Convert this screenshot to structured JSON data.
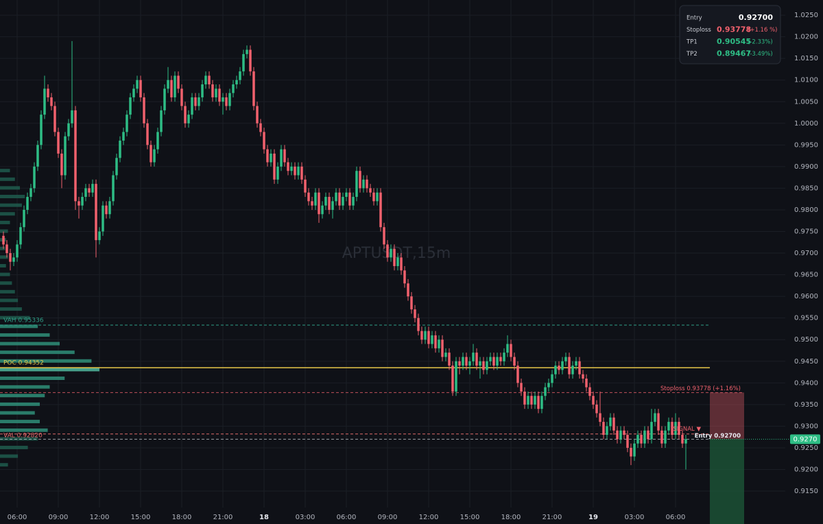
{
  "chart_data": {
    "type": "candlestick",
    "watermark": "APTUSDT,15m",
    "colors": {
      "up": "#2ebd85",
      "down": "#f0616d"
    },
    "grid": true,
    "xlim": [
      -1,
      228
    ],
    "xticks": [
      {
        "value": 4,
        "label": "06:00"
      },
      {
        "value": 16,
        "label": "09:00"
      },
      {
        "value": 28,
        "label": "12:00"
      },
      {
        "value": 40,
        "label": "15:00"
      },
      {
        "value": 52,
        "label": "18:00"
      },
      {
        "value": 64,
        "label": "21:00"
      },
      {
        "value": 76,
        "label": "18"
      },
      {
        "value": 88,
        "label": "03:00"
      },
      {
        "value": 100,
        "label": "06:00"
      },
      {
        "value": 112,
        "label": "09:00"
      },
      {
        "value": 124,
        "label": "12:00"
      },
      {
        "value": 136,
        "label": "15:00"
      },
      {
        "value": 148,
        "label": "18:00"
      },
      {
        "value": 160,
        "label": "21:00"
      },
      {
        "value": 172,
        "label": "19"
      },
      {
        "value": 184,
        "label": "03:00"
      },
      {
        "value": 196,
        "label": "06:00"
      }
    ],
    "ylim": [
      0.9112,
      1.0285
    ],
    "yticks": [
      {
        "value": 1.025,
        "label": "1.0250"
      },
      {
        "value": 1.02,
        "label": "1.0200"
      },
      {
        "value": 1.015,
        "label": "1.0150"
      },
      {
        "value": 1.01,
        "label": "1.0100"
      },
      {
        "value": 1.005,
        "label": "1.0050"
      },
      {
        "value": 1.0,
        "label": "1.0000"
      },
      {
        "value": 0.995,
        "label": "0.9950"
      },
      {
        "value": 0.99,
        "label": "0.9900"
      },
      {
        "value": 0.985,
        "label": "0.9850"
      },
      {
        "value": 0.98,
        "label": "0.9800"
      },
      {
        "value": 0.975,
        "label": "0.9750"
      },
      {
        "value": 0.97,
        "label": "0.9700"
      },
      {
        "value": 0.965,
        "label": "0.9650"
      },
      {
        "value": 0.96,
        "label": "0.9600"
      },
      {
        "value": 0.955,
        "label": "0.9550"
      },
      {
        "value": 0.95,
        "label": "0.9500"
      },
      {
        "value": 0.945,
        "label": "0.9450"
      },
      {
        "value": 0.94,
        "label": "0.9400"
      },
      {
        "value": 0.935,
        "label": "0.9350"
      },
      {
        "value": 0.93,
        "label": "0.9300"
      },
      {
        "value": 0.925,
        "label": "0.9250"
      },
      {
        "value": 0.92,
        "label": "0.9200"
      },
      {
        "value": 0.915,
        "label": "0.9150"
      }
    ],
    "open": [
      0.974,
      0.972,
      0.97,
      0.968,
      0.969,
      0.972,
      0.976,
      0.98,
      0.983,
      0.985,
      0.99,
      0.995,
      1.002,
      1.008,
      1.006,
      1.004,
      0.998,
      0.993,
      0.988,
      0.997,
      1.0,
      1.003,
      0.982,
      0.981,
      0.983,
      0.985,
      0.984,
      0.986,
      0.973,
      0.975,
      0.981,
      0.979,
      0.982,
      0.988,
      0.992,
      0.996,
      0.998,
      1.002,
      1.006,
      1.008,
      1.01,
      1.006,
      1.0,
      0.995,
      0.991,
      0.994,
      0.998,
      1.003,
      1.008,
      1.01,
      1.006,
      1.011,
      1.008,
      1.004,
      1.0,
      1.002,
      1.006,
      1.004,
      1.006,
      1.009,
      1.011,
      1.009,
      1.006,
      1.008,
      1.005,
      1.006,
      1.004,
      1.007,
      1.009,
      1.01,
      1.012,
      1.016,
      1.017,
      1.012,
      1.004,
      1.0,
      0.998,
      0.994,
      0.991,
      0.993,
      0.987,
      0.99,
      0.994,
      0.991,
      0.989,
      0.99,
      0.988,
      0.99,
      0.987,
      0.984,
      0.982,
      0.981,
      0.984,
      0.979,
      0.981,
      0.983,
      0.98,
      0.982,
      0.984,
      0.981,
      0.983,
      0.984,
      0.981,
      0.983,
      0.989,
      0.985,
      0.987,
      0.985,
      0.984,
      0.982,
      0.984,
      0.976,
      0.972,
      0.969,
      0.971,
      0.967,
      0.969,
      0.966,
      0.963,
      0.96,
      0.957,
      0.955,
      0.952,
      0.95,
      0.952,
      0.949,
      0.951,
      0.948,
      0.95,
      0.946,
      0.947,
      0.944,
      0.938,
      0.945,
      0.944,
      0.946,
      0.944,
      0.945,
      0.947,
      0.944,
      0.945,
      0.943,
      0.945,
      0.946,
      0.944,
      0.946,
      0.945,
      0.947,
      0.949,
      0.946,
      0.944,
      0.94,
      0.938,
      0.935,
      0.937,
      0.935,
      0.937,
      0.934,
      0.937,
      0.939,
      0.94,
      0.942,
      0.944,
      0.943,
      0.945,
      0.946,
      0.942,
      0.944,
      0.945,
      0.942,
      0.941,
      0.939,
      0.937,
      0.935,
      0.933,
      0.931,
      0.928,
      0.93,
      0.932,
      0.929,
      0.927,
      0.929,
      0.928,
      0.925,
      0.923,
      0.926,
      0.928,
      0.926,
      0.929,
      0.927,
      0.931,
      0.933,
      0.929,
      0.926,
      0.929,
      0.931,
      0.928,
      0.931,
      0.928,
      0.926
    ],
    "high": [
      0.975,
      0.973,
      0.971,
      0.97,
      0.973,
      0.977,
      0.981,
      0.984,
      0.986,
      0.991,
      0.996,
      1.003,
      1.011,
      1.009,
      1.007,
      1.005,
      0.999,
      0.994,
      0.998,
      1.001,
      1.019,
      1.004,
      0.983,
      0.984,
      0.986,
      0.986,
      0.987,
      0.987,
      0.976,
      0.982,
      0.982,
      0.983,
      0.989,
      0.993,
      0.997,
      0.999,
      1.003,
      1.007,
      1.009,
      1.011,
      1.011,
      1.007,
      1.001,
      0.996,
      0.995,
      0.999,
      1.004,
      1.009,
      1.013,
      1.011,
      1.012,
      1.012,
      1.009,
      1.005,
      1.003,
      1.007,
      1.007,
      1.007,
      1.01,
      1.012,
      1.012,
      1.01,
      1.009,
      1.009,
      1.007,
      1.007,
      1.008,
      1.01,
      1.011,
      1.013,
      1.017,
      1.018,
      1.018,
      1.013,
      1.005,
      1.001,
      0.999,
      0.995,
      0.994,
      0.994,
      0.991,
      0.995,
      0.995,
      0.992,
      0.991,
      0.991,
      0.991,
      0.991,
      0.988,
      0.985,
      0.983,
      0.985,
      0.985,
      0.982,
      0.984,
      0.984,
      0.983,
      0.985,
      0.985,
      0.984,
      0.985,
      0.985,
      0.984,
      0.99,
      0.99,
      0.988,
      0.988,
      0.986,
      0.985,
      0.985,
      0.985,
      0.977,
      0.973,
      0.972,
      0.972,
      0.97,
      0.97,
      0.967,
      0.964,
      0.961,
      0.958,
      0.956,
      0.953,
      0.953,
      0.953,
      0.952,
      0.952,
      0.951,
      0.951,
      0.948,
      0.948,
      0.945,
      0.946,
      0.946,
      0.947,
      0.947,
      0.946,
      0.949,
      0.948,
      0.946,
      0.946,
      0.946,
      0.947,
      0.947,
      0.947,
      0.947,
      0.948,
      0.951,
      0.95,
      0.947,
      0.945,
      0.941,
      0.939,
      0.938,
      0.938,
      0.938,
      0.938,
      0.938,
      0.94,
      0.941,
      0.943,
      0.945,
      0.945,
      0.946,
      0.947,
      0.947,
      0.945,
      0.946,
      0.946,
      0.943,
      0.942,
      0.94,
      0.938,
      0.936,
      0.938,
      0.932,
      0.931,
      0.933,
      0.933,
      0.93,
      0.93,
      0.93,
      0.929,
      0.926,
      0.927,
      0.929,
      0.929,
      0.93,
      0.93,
      0.934,
      0.934,
      0.934,
      0.93,
      0.93,
      0.932,
      0.932,
      0.933,
      0.932,
      0.929,
      0.928
    ],
    "low": [
      0.971,
      0.969,
      0.966,
      0.967,
      0.968,
      0.971,
      0.975,
      0.979,
      0.982,
      0.984,
      0.989,
      0.994,
      1.001,
      1.005,
      1.003,
      0.997,
      0.992,
      0.985,
      0.987,
      0.996,
      0.999,
      0.98,
      0.978,
      0.98,
      0.982,
      0.983,
      0.983,
      0.969,
      0.972,
      0.974,
      0.978,
      0.978,
      0.981,
      0.987,
      0.991,
      0.995,
      0.997,
      1.001,
      1.005,
      1.007,
      1.005,
      0.999,
      0.994,
      0.99,
      0.99,
      0.993,
      0.997,
      1.002,
      1.007,
      1.005,
      1.005,
      1.007,
      1.003,
      0.999,
      0.999,
      1.001,
      1.003,
      1.003,
      1.005,
      1.008,
      1.008,
      1.005,
      1.005,
      1.004,
      1.002,
      1.003,
      1.003,
      1.006,
      1.008,
      1.009,
      1.011,
      1.015,
      1.011,
      1.003,
      0.999,
      0.997,
      0.993,
      0.99,
      0.99,
      0.986,
      0.986,
      0.989,
      0.99,
      0.988,
      0.988,
      0.987,
      0.987,
      0.986,
      0.983,
      0.981,
      0.98,
      0.98,
      0.977,
      0.978,
      0.98,
      0.979,
      0.978,
      0.981,
      0.98,
      0.98,
      0.982,
      0.98,
      0.98,
      0.982,
      0.984,
      0.984,
      0.984,
      0.983,
      0.981,
      0.981,
      0.975,
      0.971,
      0.968,
      0.968,
      0.966,
      0.966,
      0.965,
      0.962,
      0.959,
      0.956,
      0.954,
      0.951,
      0.949,
      0.949,
      0.948,
      0.948,
      0.947,
      0.947,
      0.945,
      0.945,
      0.943,
      0.937,
      0.937,
      0.942,
      0.943,
      0.943,
      0.942,
      0.944,
      0.943,
      0.941,
      0.942,
      0.942,
      0.944,
      0.943,
      0.943,
      0.944,
      0.944,
      0.946,
      0.945,
      0.943,
      0.939,
      0.937,
      0.934,
      0.934,
      0.934,
      0.934,
      0.933,
      0.933,
      0.936,
      0.938,
      0.939,
      0.941,
      0.942,
      0.942,
      0.944,
      0.941,
      0.941,
      0.943,
      0.941,
      0.94,
      0.938,
      0.936,
      0.934,
      0.932,
      0.93,
      0.927,
      0.927,
      0.929,
      0.928,
      0.926,
      0.926,
      0.927,
      0.924,
      0.921,
      0.922,
      0.925,
      0.925,
      0.925,
      0.926,
      0.926,
      0.93,
      0.928,
      0.925,
      0.925,
      0.928,
      0.927,
      0.927,
      0.927,
      0.925,
      0.92
    ],
    "close": [
      0.972,
      0.97,
      0.968,
      0.969,
      0.972,
      0.976,
      0.98,
      0.983,
      0.985,
      0.99,
      0.995,
      1.002,
      1.008,
      1.006,
      1.004,
      0.998,
      0.993,
      0.988,
      0.997,
      1.0,
      1.003,
      0.982,
      0.981,
      0.983,
      0.985,
      0.984,
      0.986,
      0.973,
      0.975,
      0.981,
      0.979,
      0.982,
      0.988,
      0.992,
      0.996,
      0.998,
      1.002,
      1.006,
      1.008,
      1.01,
      1.006,
      1.0,
      0.995,
      0.991,
      0.994,
      0.998,
      1.003,
      1.008,
      1.01,
      1.006,
      1.011,
      1.008,
      1.004,
      1.0,
      1.002,
      1.006,
      1.004,
      1.006,
      1.009,
      1.011,
      1.009,
      1.006,
      1.008,
      1.005,
      1.006,
      1.004,
      1.007,
      1.009,
      1.01,
      1.012,
      1.016,
      1.017,
      1.012,
      1.004,
      1.0,
      0.998,
      0.994,
      0.991,
      0.993,
      0.987,
      0.99,
      0.994,
      0.991,
      0.989,
      0.99,
      0.988,
      0.99,
      0.987,
      0.984,
      0.982,
      0.981,
      0.984,
      0.979,
      0.981,
      0.983,
      0.98,
      0.982,
      0.984,
      0.981,
      0.983,
      0.984,
      0.981,
      0.983,
      0.989,
      0.985,
      0.987,
      0.985,
      0.984,
      0.982,
      0.984,
      0.976,
      0.972,
      0.969,
      0.971,
      0.967,
      0.969,
      0.966,
      0.963,
      0.96,
      0.957,
      0.955,
      0.952,
      0.95,
      0.952,
      0.949,
      0.951,
      0.948,
      0.95,
      0.946,
      0.947,
      0.944,
      0.938,
      0.945,
      0.944,
      0.946,
      0.944,
      0.945,
      0.947,
      0.944,
      0.945,
      0.943,
      0.945,
      0.946,
      0.944,
      0.946,
      0.945,
      0.947,
      0.949,
      0.946,
      0.944,
      0.94,
      0.938,
      0.935,
      0.937,
      0.935,
      0.937,
      0.934,
      0.937,
      0.939,
      0.94,
      0.942,
      0.944,
      0.943,
      0.945,
      0.946,
      0.942,
      0.944,
      0.945,
      0.942,
      0.941,
      0.939,
      0.937,
      0.935,
      0.933,
      0.931,
      0.928,
      0.93,
      0.932,
      0.929,
      0.927,
      0.929,
      0.928,
      0.925,
      0.923,
      0.926,
      0.928,
      0.926,
      0.929,
      0.927,
      0.931,
      0.933,
      0.929,
      0.926,
      0.929,
      0.931,
      0.928,
      0.931,
      0.928,
      0.926,
      0.927
    ],
    "volume_profile": {
      "prices": [
        0.989,
        0.987,
        0.985,
        0.983,
        0.981,
        0.979,
        0.977,
        0.975,
        0.973,
        0.971,
        0.969,
        0.967,
        0.965,
        0.963,
        0.961,
        0.959,
        0.957,
        0.955,
        0.953,
        0.951,
        0.949,
        0.947,
        0.945,
        0.943,
        0.941,
        0.939,
        0.937,
        0.935,
        0.933,
        0.931,
        0.929,
        0.927,
        0.925,
        0.923,
        0.921
      ],
      "volumes": [
        10,
        15,
        20,
        25,
        22,
        15,
        10,
        8,
        6,
        5,
        8,
        6,
        10,
        12,
        15,
        18,
        22,
        30,
        38,
        50,
        60,
        75,
        92,
        100,
        65,
        50,
        45,
        40,
        35,
        40,
        48,
        38,
        28,
        18,
        8
      ],
      "color": "#1f5c4e",
      "value_area_color": "#2f8f79",
      "poc_color": "#4fb8a0"
    },
    "levels": [
      {
        "label": "VAH 0.95336",
        "value": 0.95336,
        "color": "#2f9e87",
        "dash": "4 3"
      },
      {
        "label": "POC 0.94352",
        "value": 0.94352,
        "color": "#e8c84a",
        "dash": "none"
      },
      {
        "label": "VAL 0.92820",
        "value": 0.9282,
        "color": "#e06a6a",
        "dash": "4 3"
      }
    ],
    "trade": {
      "stoploss": {
        "value": 0.93778,
        "label": "Stoploss 0.93778 (+1.16%)",
        "color": "#f0616d"
      },
      "entry": {
        "value": 0.927,
        "label": "Entry 0.92700",
        "color": "#d8dbe2"
      },
      "tp1": 0.90545,
      "signal": "SIGNAL ▼",
      "price_tag": {
        "value": 0.927,
        "label": "0.9270"
      }
    },
    "info_box": [
      {
        "name": "Entry",
        "value": 0.927,
        "label": "0.92700",
        "change": null,
        "color": "#ffffff"
      },
      {
        "name": "Stoploss",
        "value": 0.93778,
        "label": "0.93778",
        "change": "(+1.16 %)",
        "color": "#f0616d"
      },
      {
        "name": "TP1",
        "value": 0.90545,
        "label": "0.90545",
        "change": "(-2.33%)",
        "color": "#2ebd85"
      },
      {
        "name": "TP2",
        "value": 0.89467,
        "label": "0.89467",
        "change": "(-3.49%)",
        "color": "#2ebd85"
      }
    ]
  }
}
